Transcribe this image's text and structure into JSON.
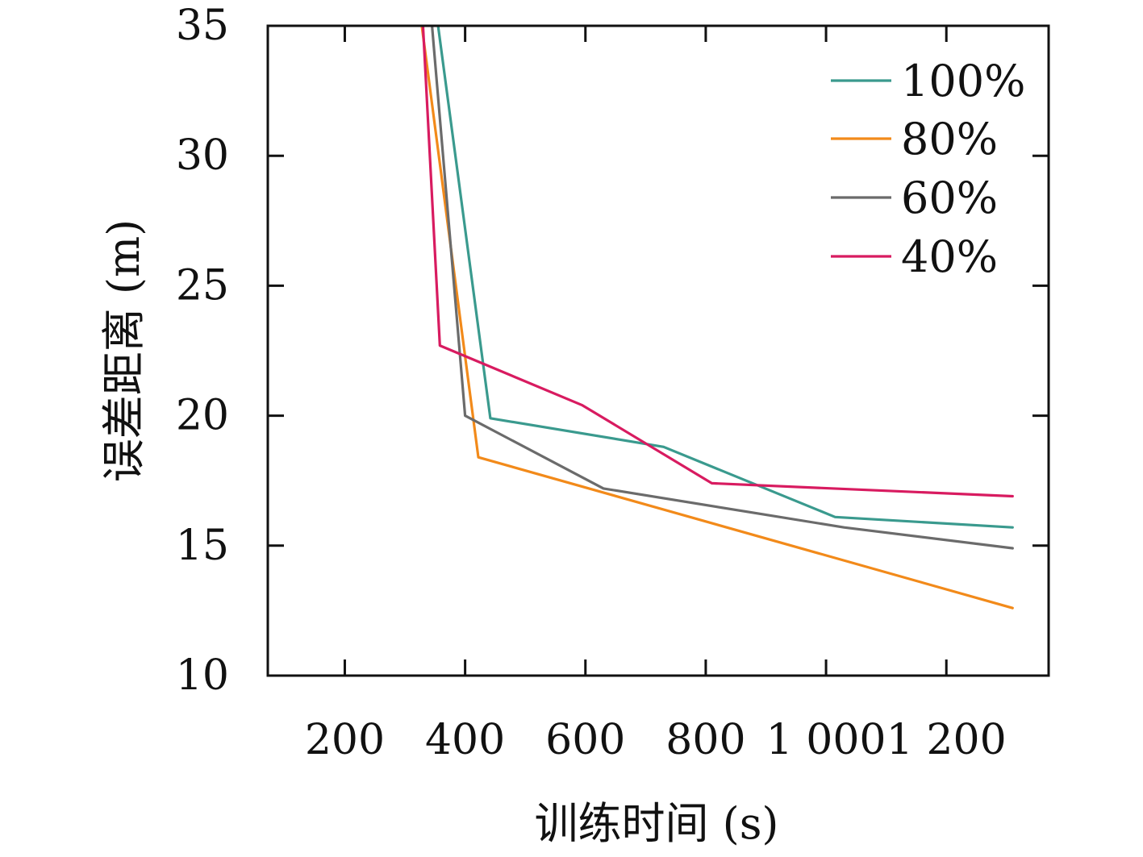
{
  "chart_data": {
    "type": "line",
    "xlabel": "训练时间 (s)",
    "ylabel": "误差距离 (m)",
    "xlim": [
      72,
      1370
    ],
    "ylim": [
      10,
      35
    ],
    "xticks": [
      200,
      400,
      600,
      800,
      1000,
      1200
    ],
    "xtick_labels": [
      "200",
      "400",
      "600",
      "800",
      "1 000",
      "1 200"
    ],
    "yticks": [
      10,
      15,
      20,
      25,
      30,
      35
    ],
    "ytick_labels": [
      "10",
      "15",
      "20",
      "25",
      "30",
      "35"
    ],
    "grid": false,
    "legend": "top-right",
    "series": [
      {
        "name": "100%",
        "color": "#3a9a8e",
        "points": [
          [
            355,
            35
          ],
          [
            442,
            19.9
          ],
          [
            730,
            18.8
          ],
          [
            1015,
            16.1
          ],
          [
            1310,
            15.7
          ]
        ]
      },
      {
        "name": "80%",
        "color": "#f28a1a",
        "points": [
          [
            328,
            35
          ],
          [
            422,
            18.4
          ],
          [
            1310,
            12.6
          ]
        ]
      },
      {
        "name": "60%",
        "color": "#6b6b6b",
        "points": [
          [
            345,
            35
          ],
          [
            400,
            20.0
          ],
          [
            630,
            17.2
          ],
          [
            1030,
            15.7
          ],
          [
            1310,
            14.9
          ]
        ]
      },
      {
        "name": "40%",
        "color": "#d81b60",
        "points": [
          [
            330,
            35
          ],
          [
            358,
            22.7
          ],
          [
            595,
            20.4
          ],
          [
            810,
            17.4
          ],
          [
            1310,
            16.9
          ]
        ]
      }
    ]
  }
}
